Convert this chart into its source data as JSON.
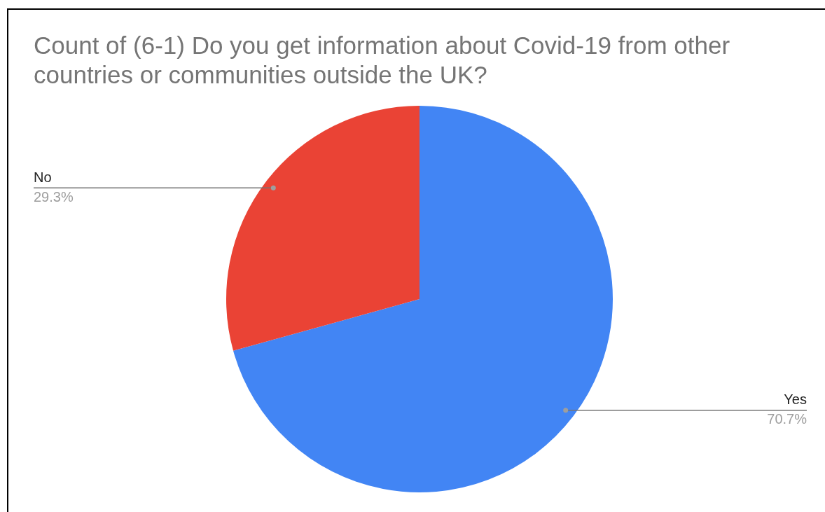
{
  "chart_data": {
    "type": "pie",
    "title": "Count of (6-1) Do you get information about Covid-19 from other countries or communities outside the UK?",
    "categories": [
      "Yes",
      "No"
    ],
    "values": [
      70.7,
      29.3
    ],
    "value_labels": [
      "70.7%",
      "29.3%"
    ],
    "colors": [
      "#4285f4",
      "#ea4335"
    ],
    "legend": false
  }
}
